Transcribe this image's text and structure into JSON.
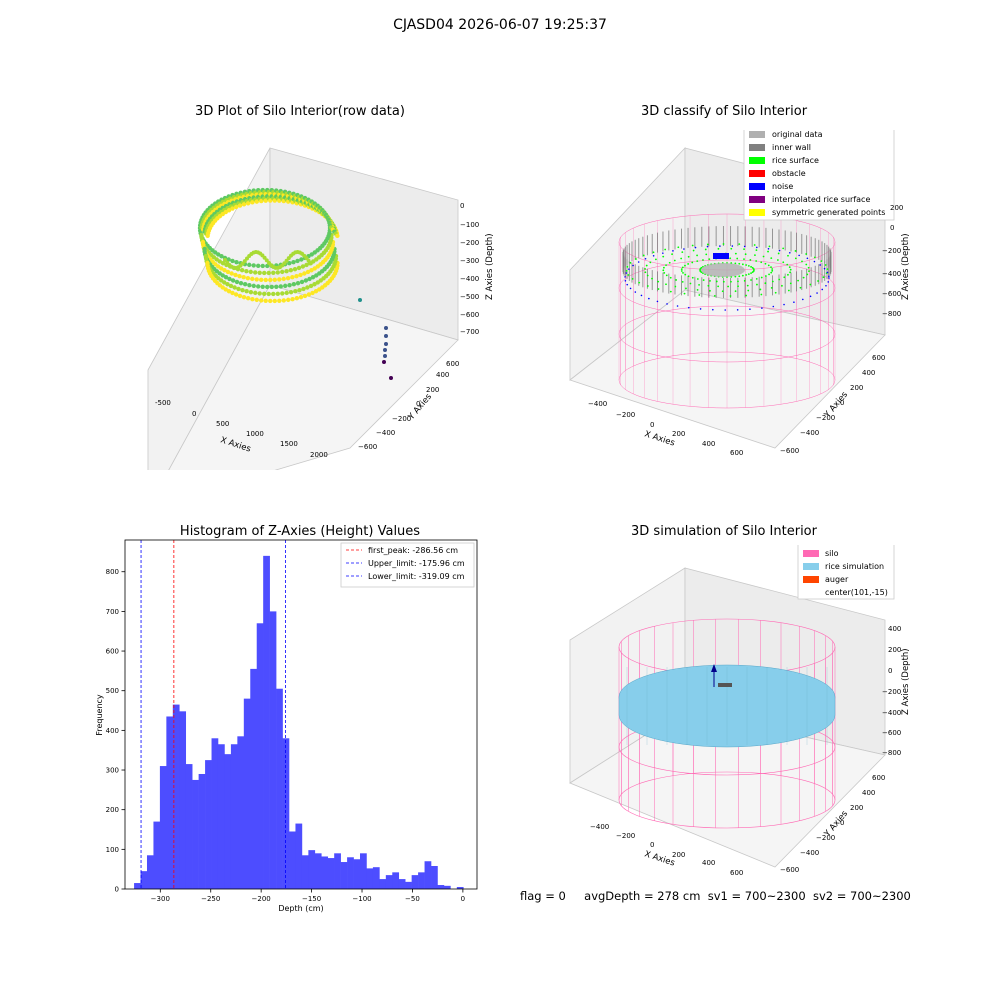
{
  "suptitle": "CJASD04 2026-06-07 19:25:37",
  "footer": {
    "flag": "flag = 0",
    "avg_depth": "avgDepth = 278 cm",
    "sv1": "sv1 = 700~2300",
    "sv2": "sv2 = 700~2300"
  },
  "colors": {
    "original_data": "#b0b0b0",
    "inner_wall": "#808080",
    "rice_surface": "#00ff00",
    "obstacle": "#ff0000",
    "noise": "#0000ff",
    "interpolated_rice_surface": "#800080",
    "symmetric_generated_points": "#ffff00",
    "silo": "#ff69b4",
    "rice_simulation": "#87ceeb",
    "auger": "#ff4500",
    "histogram_bar": "#4d4dff"
  },
  "plot1": {
    "title": "3D Plot of Silo Interior(row data)",
    "x_label": "X Axies",
    "y_label": "Y Axies",
    "z_label": "Z Axies (Depth)",
    "x_ticks": [
      "-500",
      "0",
      "500",
      "1000",
      "1500",
      "2000"
    ],
    "y_ticks": [
      "600",
      "400",
      "200",
      "0",
      "−200",
      "−400",
      "−600"
    ],
    "z_ticks": [
      "0",
      "−100",
      "−200",
      "−300",
      "−400",
      "−500",
      "−600",
      "−700"
    ]
  },
  "plot2": {
    "title": "3D classify of Silo Interior",
    "x_label": "X Axies",
    "y_label": "Y Axies",
    "z_label": "Z Axies (Depth)",
    "x_ticks": [
      "−400",
      "−200",
      "0",
      "200",
      "400",
      "600"
    ],
    "y_ticks": [
      "600",
      "400",
      "200",
      "0",
      "−200",
      "−400",
      "−600"
    ],
    "z_ticks": [
      "200",
      "0",
      "−200",
      "−400",
      "−600",
      "−800"
    ],
    "legend": [
      {
        "label": "original data",
        "color": "#b0b0b0"
      },
      {
        "label": "inner wall",
        "color": "#808080"
      },
      {
        "label": "rice surface",
        "color": "#00ff00"
      },
      {
        "label": "obstacle",
        "color": "#ff0000"
      },
      {
        "label": "noise",
        "color": "#0000ff"
      },
      {
        "label": "interpolated rice surface",
        "color": "#800080"
      },
      {
        "label": "symmetric generated points",
        "color": "#ffff00"
      }
    ]
  },
  "plot4": {
    "title": "3D simulation of Silo Interior",
    "x_label": "X Axies",
    "y_label": "Y Axies",
    "z_label": "Z Axies (Depth)",
    "x_ticks": [
      "−400",
      "−200",
      "0",
      "200",
      "400",
      "600"
    ],
    "y_ticks": [
      "600",
      "400",
      "200",
      "0",
      "−200",
      "−400",
      "−600"
    ],
    "z_ticks": [
      "400",
      "200",
      "0",
      "−200",
      "−400",
      "−600",
      "−800"
    ],
    "legend": [
      {
        "label": "silo",
        "color": "#ff69b4"
      },
      {
        "label": "rice simulation",
        "color": "#87ceeb"
      },
      {
        "label": "auger",
        "color": "#ff4500"
      },
      {
        "label": "center(101,-15)",
        "color": ""
      }
    ]
  },
  "chart_data": {
    "type": "bar",
    "title": "Histogram of Z-Axies (Height) Values",
    "xlabel": "Depth (cm)",
    "ylabel": "Frequency",
    "xlim": [
      -335,
      14
    ],
    "ylim": [
      0,
      880
    ],
    "x_ticks": [
      -300,
      -250,
      -200,
      -150,
      -100,
      -50,
      0
    ],
    "y_ticks": [
      0,
      100,
      200,
      300,
      400,
      500,
      600,
      700,
      800
    ],
    "bin_start": -326,
    "bin_width": 6.4,
    "values": [
      15,
      45,
      85,
      170,
      310,
      435,
      465,
      448,
      315,
      275,
      290,
      325,
      380,
      365,
      340,
      365,
      385,
      480,
      555,
      670,
      840,
      700,
      505,
      380,
      145,
      165,
      85,
      98,
      90,
      82,
      78,
      90,
      68,
      80,
      75,
      90,
      52,
      55,
      25,
      35,
      42,
      25,
      18,
      35,
      42,
      70,
      58,
      10,
      8,
      0,
      5,
      0
    ],
    "lines": [
      {
        "label": "first_peak: -286.56 cm",
        "x": -286.56,
        "color": "#ff0000"
      },
      {
        "label": "Upper_limit: -175.96 cm",
        "x": -175.96,
        "color": "#0000ff"
      },
      {
        "label": "Lower_limit: -319.09 cm",
        "x": -319.09,
        "color": "#0000ff"
      }
    ],
    "legend_position": "upper right"
  }
}
